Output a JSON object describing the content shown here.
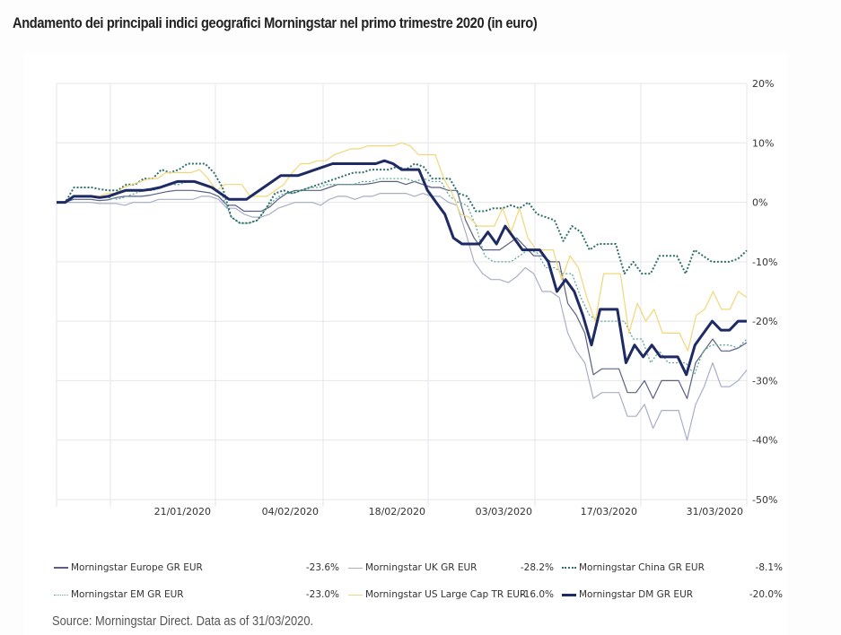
{
  "title": "Andamento dei principali indici geografici Morningstar nel primo trimestre 2020 (in euro)",
  "source": "Source: Morningstar Direct. Data as of 31/03/2020.",
  "chart_data": {
    "type": "line",
    "title": "Andamento dei principali indici geografici Morningstar nel primo trimestre 2020 (in euro)",
    "xlabel": "",
    "ylabel": "",
    "ylim": [
      -50,
      20
    ],
    "yticks": [
      20,
      10,
      0,
      -10,
      -20,
      -30,
      -40,
      -50
    ],
    "ytick_labels": [
      "20%",
      "10%",
      "0%",
      "-10%",
      "-20%",
      "-30%",
      "-40%",
      "-50%"
    ],
    "xtick_labels": [
      "21/01/2020",
      "04/02/2020",
      "18/02/2020",
      "03/03/2020",
      "17/03/2020",
      "31/03/2020"
    ],
    "grid": true,
    "legend_position": "bottom",
    "x_trading_days": 65,
    "series": [
      {
        "name": "Morningstar Europe GR EUR",
        "legend_value": "-23.6%",
        "color": "#5a6184",
        "style": "solid",
        "values": [
          0,
          0,
          0.5,
          0.5,
          0.5,
          0.3,
          0.4,
          0.8,
          1,
          1,
          1,
          1.2,
          1.5,
          1.8,
          2,
          2,
          2,
          1.8,
          1.6,
          1,
          -0.5,
          -0.5,
          -1.5,
          -1.5,
          -1.5,
          -0.8,
          0.5,
          1.5,
          2,
          2,
          2,
          2,
          2.5,
          3,
          3,
          3,
          3,
          3.2,
          3.5,
          3.5,
          3.5,
          3,
          3.5,
          3,
          2.5,
          2.5,
          2,
          2,
          -3,
          -6,
          -8,
          -8,
          -8,
          -7,
          -6,
          -7.5,
          -9,
          -9,
          -10,
          -10,
          -17,
          -19,
          -22,
          -29,
          -28,
          -28,
          -28,
          -32,
          -32,
          -30,
          -33,
          -30,
          -30,
          -30,
          -33,
          -27,
          -25,
          -23,
          -25,
          -25,
          -24.5,
          -23.6
        ],
        "x_points": 82
      },
      {
        "name": "Morningstar UK GR EUR",
        "legend_value": "-28.2%",
        "color": "#a8afc7",
        "style": "solid",
        "values": [
          0,
          0,
          0,
          0,
          0,
          -0.2,
          -0.2,
          -0.2,
          -0.5,
          0,
          0,
          0,
          0.5,
          0.5,
          0.5,
          0.5,
          0.5,
          1,
          1,
          0.5,
          -1,
          -1,
          -2,
          -2.5,
          -2.5,
          -2,
          -1,
          -0.5,
          0,
          0,
          0,
          -0.5,
          0.5,
          1,
          1,
          0.5,
          1,
          1,
          1.5,
          1.5,
          1.5,
          1.5,
          1,
          1.5,
          1,
          1,
          0,
          -0.5,
          -5,
          -10,
          -12,
          -13,
          -13,
          -13.5,
          -12.5,
          -11,
          -12,
          -15,
          -15,
          -16,
          -22,
          -25,
          -27,
          -33,
          -32,
          -32,
          -32,
          -36,
          -36,
          -34,
          -38,
          -35,
          -35,
          -35,
          -40,
          -34,
          -31,
          -27,
          -31,
          -31,
          -30,
          -28.2
        ],
        "x_points": 82
      },
      {
        "name": "Morningstar China GR EUR",
        "legend_value": "-8.1%",
        "color": "#2f6f6a",
        "style": "dotted",
        "values": [
          0,
          0,
          2.5,
          2.5,
          2.5,
          2.2,
          2,
          2,
          3,
          3,
          4,
          4,
          5.5,
          5,
          5.5,
          6.5,
          6.5,
          6.5,
          5,
          2.5,
          -2.5,
          -3.5,
          -3.5,
          -3,
          -1,
          1.5,
          2,
          1.5,
          2,
          2.5,
          3,
          3.5,
          4,
          4.5,
          5,
          5,
          5.5,
          5.5,
          5.5,
          6,
          5.5,
          6.5,
          6,
          4,
          4,
          4,
          1.5,
          1,
          -1.5,
          -1.5,
          -1,
          -1,
          -0.5,
          -1,
          0,
          -2,
          -2.5,
          -3,
          -6.5,
          -4,
          -5,
          -8,
          -7,
          -7,
          -7,
          -12,
          -10,
          -12,
          -12,
          -9,
          -9,
          -9,
          -12,
          -8,
          -9,
          -10,
          -10,
          -10,
          -9.5,
          -8.1
        ],
        "x_points": 80
      },
      {
        "name": "Morningstar EM GR EUR",
        "legend_value": "-23.0%",
        "color": "#5fa89a",
        "style": "dotted",
        "values": [
          0,
          0,
          1,
          1,
          1,
          1,
          0.8,
          0.5,
          1,
          1.5,
          2,
          2,
          2.5,
          3,
          3,
          3.5,
          3.5,
          3,
          2.5,
          1,
          -2.5,
          -3.5,
          -3.5,
          -3,
          -1,
          0.5,
          1.5,
          1.5,
          2,
          2.5,
          2.5,
          3,
          3,
          3,
          3,
          3.5,
          3.5,
          4,
          4,
          4,
          4,
          3.5,
          4,
          3.5,
          3.5,
          1,
          0,
          -0.5,
          -4,
          -9,
          -10,
          -10,
          -10,
          -9,
          -8,
          -8.5,
          -11,
          -11,
          -12,
          -12,
          -16,
          -19,
          -20,
          -20,
          -20,
          -20,
          -23,
          -23,
          -27,
          -25,
          -27,
          -27,
          -27,
          -29,
          -25,
          -24,
          -24,
          -24,
          -24.5,
          -23
        ],
        "x_points": 80
      },
      {
        "name": "Morningstar US Large Cap TR EUR",
        "legend_value": "-16.0%",
        "color": "#f2d777",
        "style": "solid",
        "values": [
          0,
          0,
          1,
          1,
          1,
          1,
          1.5,
          1.5,
          2.5,
          3,
          3.5,
          4,
          4,
          5,
          5,
          5,
          5,
          5.5,
          4,
          2,
          3,
          3,
          3,
          1,
          1,
          1,
          2,
          3,
          5,
          6.5,
          6.5,
          7,
          7,
          8,
          8.5,
          9,
          9,
          9.5,
          9.5,
          9.5,
          9.5,
          10,
          9.5,
          8,
          8,
          8,
          4,
          1.5,
          -2,
          -2.5,
          -4,
          -4,
          -4,
          -1,
          -5,
          -1,
          -6,
          -8,
          -8,
          -8,
          -13,
          -9,
          -11,
          -16,
          -20,
          -12,
          -12,
          -12,
          -22,
          -17,
          -20,
          -18,
          -22,
          -22,
          -22,
          -25,
          -19,
          -18,
          -15,
          -18,
          -18,
          -15,
          -16
        ],
        "x_points": 83
      },
      {
        "name": "Morningstar DM GR EUR",
        "legend_value": "-20.0%",
        "color": "#1d2a63",
        "style": "solid-bold",
        "values": [
          0,
          0,
          1,
          1,
          1,
          0.8,
          1,
          1.5,
          2,
          2,
          2,
          2.2,
          2.5,
          3,
          3.5,
          3.5,
          3.5,
          3,
          2.5,
          1.5,
          0.5,
          0.5,
          0.5,
          1.5,
          2.5,
          3.5,
          4.5,
          4.5,
          4.5,
          5,
          5.5,
          6,
          6.5,
          6.5,
          6.5,
          6.5,
          6.5,
          6.5,
          7,
          6.5,
          5.5,
          5.5,
          5.5,
          2,
          0,
          -2,
          -6,
          -7,
          -7,
          -7,
          -5,
          -7,
          -4,
          -6,
          -8,
          -8,
          -8,
          -10,
          -15,
          -13,
          -15,
          -19,
          -24,
          -18,
          -18,
          -18,
          -27,
          -24,
          -26,
          -24,
          -26,
          -26,
          -26,
          -29,
          -24,
          -22,
          -20,
          -21.5,
          -21.5,
          -20,
          -20
        ],
        "x_points": 81
      }
    ]
  },
  "legend": {
    "rows": [
      [
        {
          "name": "Morningstar Europe GR EUR",
          "value": "-23.6%"
        },
        {
          "name": "Morningstar UK GR EUR",
          "value": "-28.2%"
        },
        {
          "name": "Morningstar China GR EUR",
          "value": "-8.1%"
        }
      ],
      [
        {
          "name": "Morningstar EM GR EUR",
          "value": "-23.0%"
        },
        {
          "name": "Morningstar US Large Cap TR EUR",
          "value": "-16.0%"
        },
        {
          "name": "Morningstar DM GR EUR",
          "value": "-20.0%"
        }
      ]
    ]
  }
}
